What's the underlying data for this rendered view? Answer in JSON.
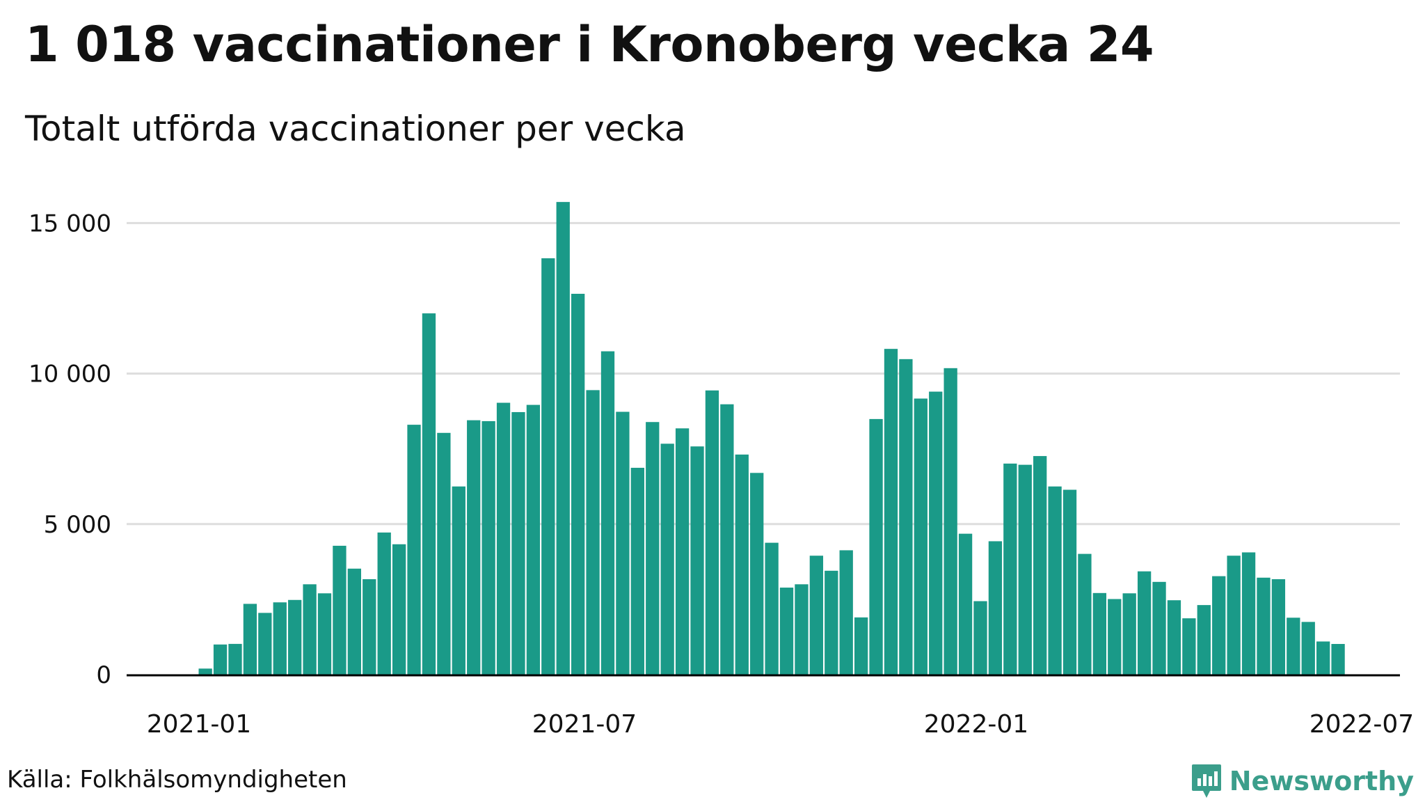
{
  "title": "1 018 vaccinationer i Kronoberg vecka 24",
  "subtitle": "Totalt utförda vaccinationer per vecka",
  "source": "Källa: Folkhälsomyndigheten",
  "brand": "Newsworthy",
  "colors": {
    "bar": "#1a9a88",
    "grid": "#dddddd",
    "axis": "#000000",
    "brand": "#3b9e8b"
  },
  "chart_data": {
    "type": "bar",
    "title": "1 018 vaccinationer i Kronoberg vecka 24",
    "subtitle": "Totalt utförda vaccinationer per vecka",
    "xlabel": "",
    "ylabel": "",
    "ylim": [
      0,
      15750
    ],
    "yticks": [
      0,
      5000,
      10000,
      15000
    ],
    "ytick_labels": [
      "0",
      "5 000",
      "10 000",
      "15 000"
    ],
    "xtick_labels": [
      "2021-01",
      "2021-07",
      "2022-01",
      "2022-07"
    ],
    "grid": true,
    "legend": "none",
    "series": [
      {
        "values": [
          200,
          1000,
          1020,
          2350,
          2050,
          2400,
          2480,
          3000,
          2700,
          4280,
          3520,
          3170,
          4720,
          4330,
          8300,
          12000,
          8030,
          6250,
          8450,
          8420,
          9030,
          8720,
          8960,
          13830,
          15700,
          12650,
          9450,
          10740,
          8730,
          6870,
          8390,
          7670,
          8180,
          7580,
          9440,
          8980,
          7310,
          6700,
          4380,
          2890,
          3000,
          3950,
          3450,
          4130,
          1900,
          8490,
          10820,
          10480,
          9170,
          9400,
          10180,
          4680,
          2440,
          4430,
          7010,
          6970,
          7260,
          6250,
          6140,
          4010,
          2710,
          2510,
          2700,
          3430,
          3080,
          2470,
          1870,
          2310,
          3270,
          3950,
          4060,
          3220,
          3170,
          1890,
          1750,
          1100,
          1018
        ]
      }
    ]
  }
}
